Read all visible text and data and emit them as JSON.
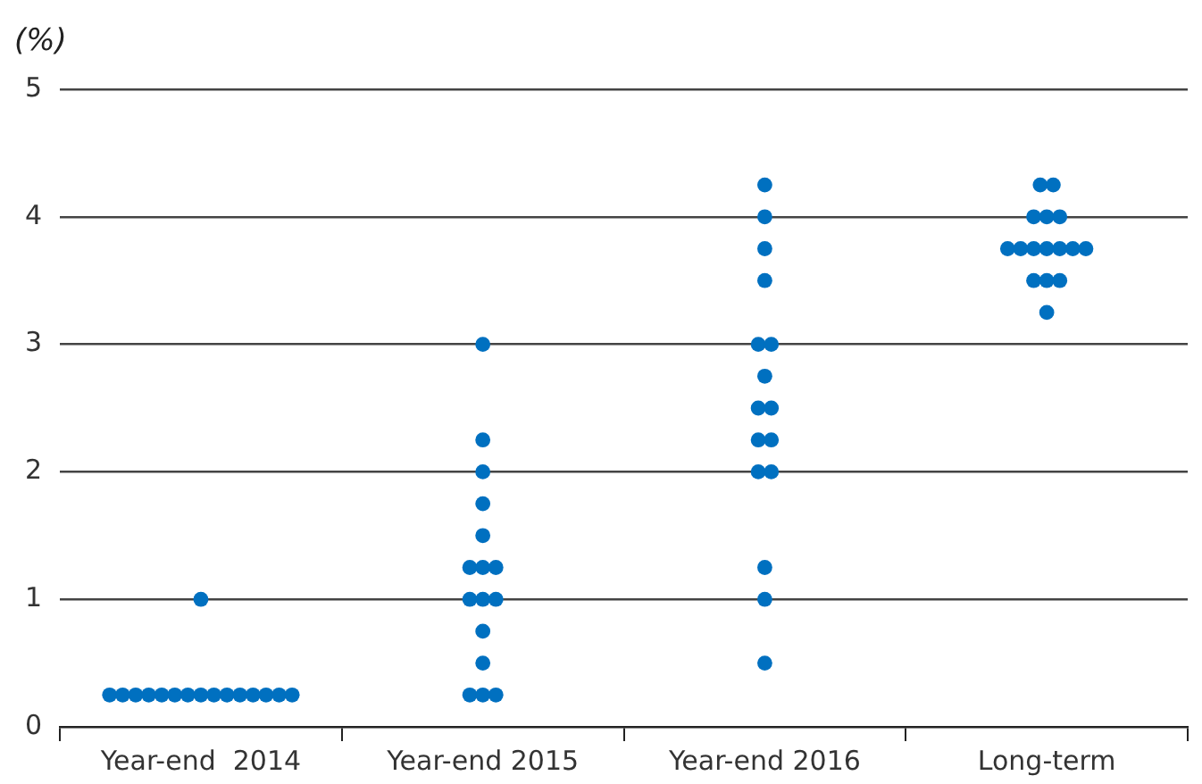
{
  "chart_data": {
    "type": "scatter",
    "ylabel": "(%)",
    "categories": [
      "Year-end  2014",
      "Year-end 2015",
      "Year-end 2016",
      "Long-term"
    ],
    "series": [
      {
        "color": "#0070c0",
        "x": [
          "Year-end  2014",
          "Year-end  2014",
          "Year-end  2014",
          "Year-end  2014",
          "Year-end  2014",
          "Year-end  2014",
          "Year-end  2014",
          "Year-end  2014",
          "Year-end  2014",
          "Year-end  2014",
          "Year-end  2014",
          "Year-end  2014",
          "Year-end  2014",
          "Year-end  2014",
          "Year-end  2014",
          "Year-end  2014",
          "Year-end 2015",
          "Year-end 2015",
          "Year-end 2015",
          "Year-end 2015",
          "Year-end 2015",
          "Year-end 2015",
          "Year-end 2015",
          "Year-end 2015",
          "Year-end 2015",
          "Year-end 2015",
          "Year-end 2015",
          "Year-end 2015",
          "Year-end 2015",
          "Year-end 2015",
          "Year-end 2015",
          "Year-end 2015",
          "Year-end 2016",
          "Year-end 2016",
          "Year-end 2016",
          "Year-end 2016",
          "Year-end 2016",
          "Year-end 2016",
          "Year-end 2016",
          "Year-end 2016",
          "Year-end 2016",
          "Year-end 2016",
          "Year-end 2016",
          "Year-end 2016",
          "Year-end 2016",
          "Year-end 2016",
          "Year-end 2016",
          "Year-end 2016",
          "Long-term",
          "Long-term",
          "Long-term",
          "Long-term",
          "Long-term",
          "Long-term",
          "Long-term",
          "Long-term",
          "Long-term",
          "Long-term",
          "Long-term",
          "Long-term",
          "Long-term",
          "Long-term",
          "Long-term",
          "Long-term"
        ],
        "values": [
          0.25,
          0.25,
          0.25,
          0.25,
          0.25,
          0.25,
          0.25,
          0.25,
          0.25,
          0.25,
          0.25,
          0.25,
          0.25,
          0.25,
          0.25,
          1,
          0.25,
          0.25,
          0.25,
          0.5,
          0.75,
          1,
          1,
          1,
          1.25,
          1.25,
          1.25,
          1.5,
          1.75,
          2,
          2.25,
          3,
          0.5,
          1,
          1.25,
          2,
          2,
          2.25,
          2.25,
          2.5,
          2.5,
          2.75,
          3,
          3,
          3.5,
          3.75,
          4,
          4.25,
          3.25,
          3.5,
          3.5,
          3.5,
          3.75,
          3.75,
          3.75,
          3.75,
          3.75,
          3.75,
          3.75,
          4,
          4,
          4,
          4.25,
          4.25
        ]
      }
    ],
    "ylim": [
      0,
      5
    ],
    "yticks": [
      0,
      1,
      2,
      3,
      4,
      5
    ],
    "grid": "y",
    "legend": false,
    "marker": "circle"
  }
}
